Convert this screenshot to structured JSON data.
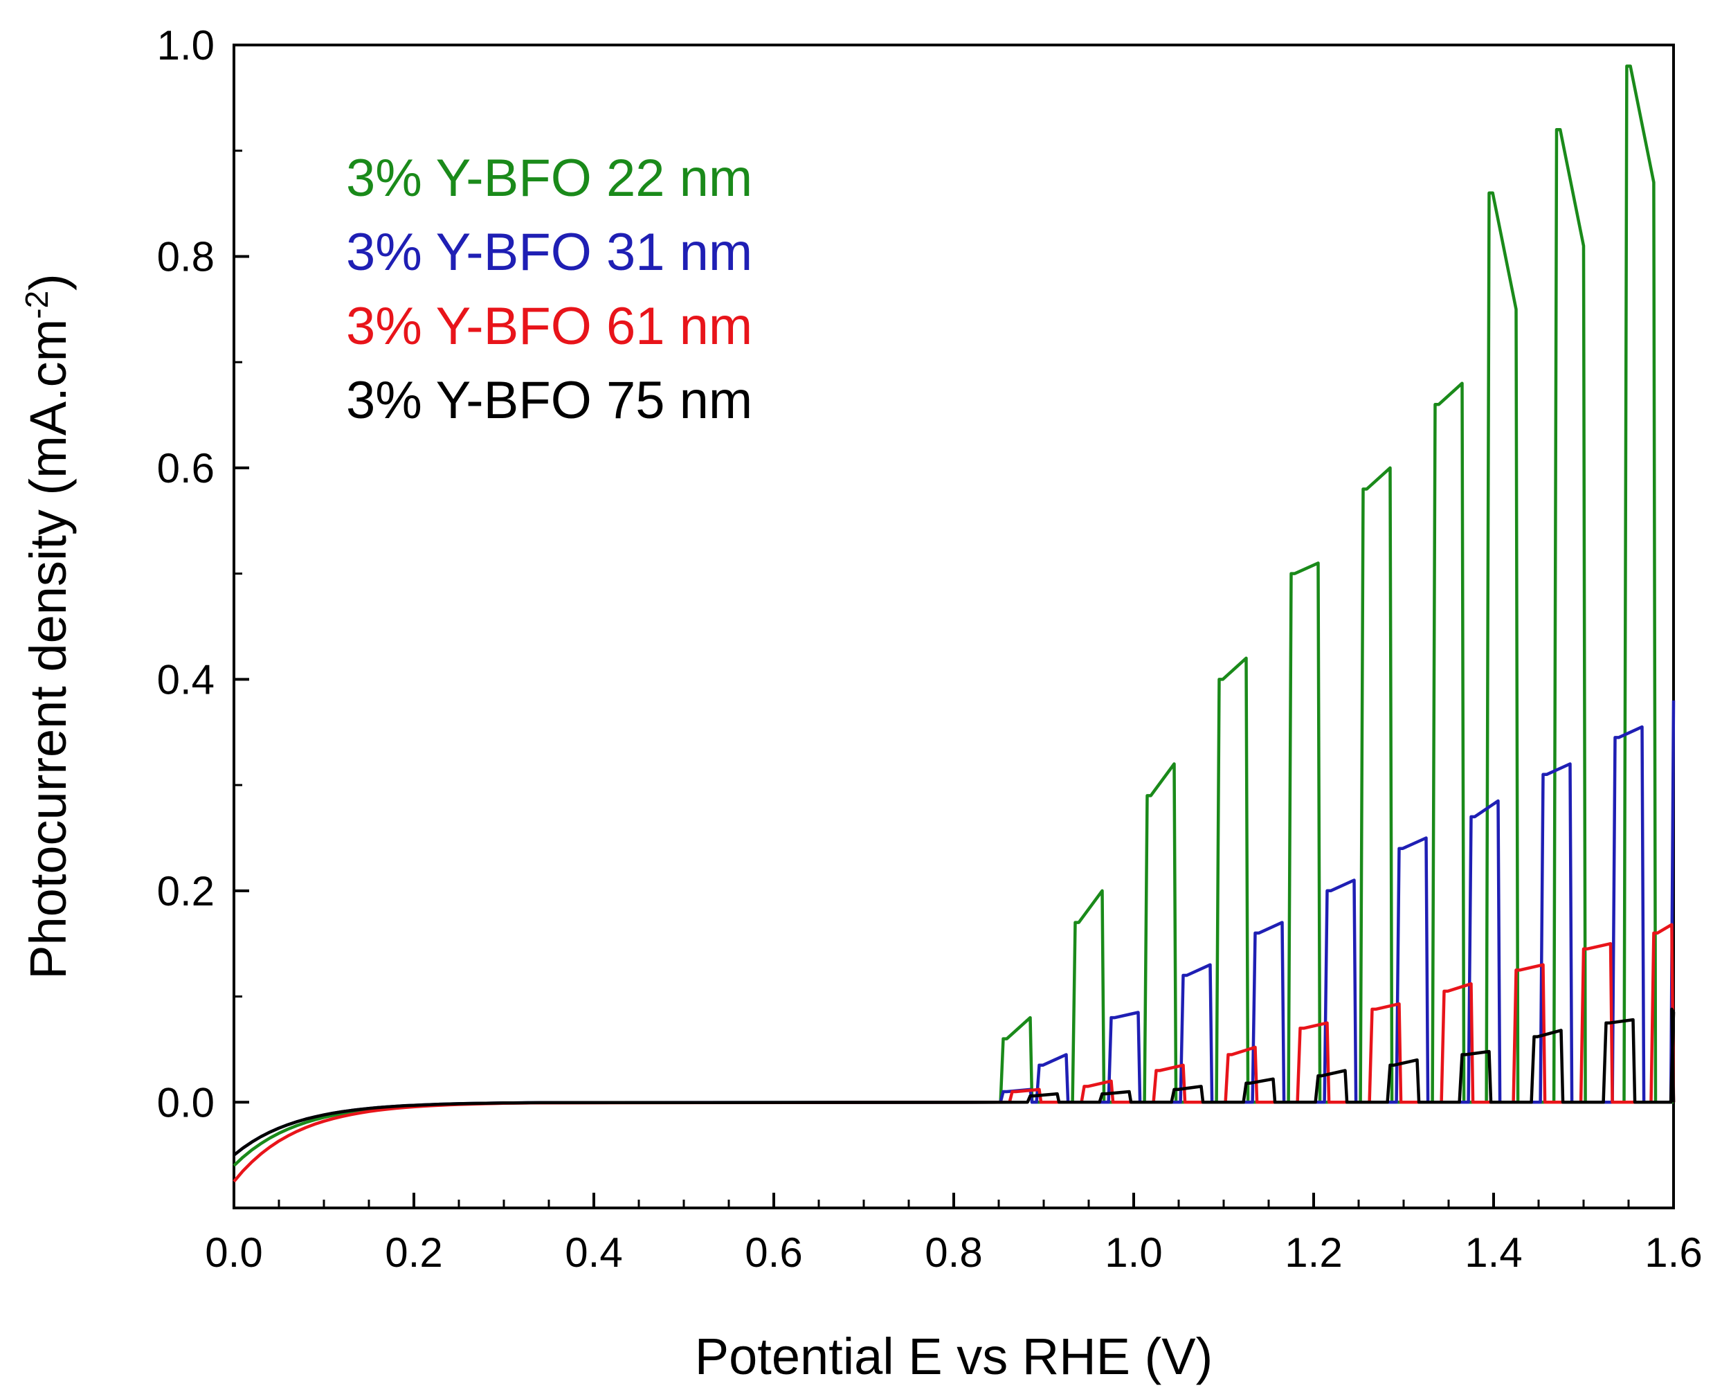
{
  "chart_data": {
    "type": "line",
    "title": "",
    "xlabel": "Potential E vs RHE (V)",
    "ylabel": "Photocurrent density (mA.cm",
    "ylabel_sup": "-2",
    "ylabel_end": ")",
    "xlim": [
      0.0,
      1.6
    ],
    "ylim": [
      -0.1,
      1.0
    ],
    "xticks": [
      "0.0",
      "0.2",
      "0.4",
      "0.6",
      "0.8",
      "1.0",
      "1.2",
      "1.4",
      "1.6"
    ],
    "yticks": [
      "0.0",
      "0.2",
      "0.4",
      "0.6",
      "0.8",
      "1.0"
    ],
    "xtick_values": [
      0.0,
      0.2,
      0.4,
      0.6,
      0.8,
      1.0,
      1.2,
      1.4,
      1.6
    ],
    "ytick_values": [
      0.0,
      0.2,
      0.4,
      0.6,
      0.8,
      1.0
    ],
    "legend_position": "top-left",
    "grid": false,
    "chopped_light": {
      "period": 0.08,
      "light_on_fraction": 0.4,
      "first_on_start": 0.855
    },
    "series": [
      {
        "name": "3% Y-BFO 22 nm",
        "color": "#1a8a1a",
        "dark_start": -0.06,
        "pulses": [
          {
            "start": 0.855,
            "on": 0.06,
            "peak": 0.08
          },
          {
            "start": 0.935,
            "on": 0.17,
            "peak": 0.2
          },
          {
            "start": 1.015,
            "on": 0.29,
            "peak": 0.32
          },
          {
            "start": 1.095,
            "on": 0.4,
            "peak": 0.42
          },
          {
            "start": 1.175,
            "on": 0.5,
            "peak": 0.51
          },
          {
            "start": 1.255,
            "on": 0.58,
            "peak": 0.6
          },
          {
            "start": 1.335,
            "on": 0.66,
            "peak": 0.68
          },
          {
            "start": 1.395,
            "on": 0.86,
            "peak": 0.75
          },
          {
            "start": 1.47,
            "on": 0.92,
            "peak": 0.81
          },
          {
            "start": 1.548,
            "on": 0.98,
            "peak": 0.87
          }
        ]
      },
      {
        "name": "3% Y-BFO 31 nm",
        "color": "#1f1fb4",
        "dark_start": -0.05,
        "pulses": [
          {
            "start": 0.855,
            "on": 0.01,
            "peak": 0.012
          },
          {
            "start": 0.895,
            "on": 0.035,
            "peak": 0.045
          },
          {
            "start": 0.975,
            "on": 0.08,
            "peak": 0.085
          },
          {
            "start": 1.055,
            "on": 0.12,
            "peak": 0.13
          },
          {
            "start": 1.135,
            "on": 0.16,
            "peak": 0.17
          },
          {
            "start": 1.215,
            "on": 0.2,
            "peak": 0.21
          },
          {
            "start": 1.295,
            "on": 0.24,
            "peak": 0.25
          },
          {
            "start": 1.375,
            "on": 0.27,
            "peak": 0.285
          },
          {
            "start": 1.455,
            "on": 0.31,
            "peak": 0.32
          },
          {
            "start": 1.535,
            "on": 0.345,
            "peak": 0.355
          }
        ],
        "end_value": 0.38
      },
      {
        "name": "3% Y-BFO 61 nm",
        "color": "#e8141a",
        "dark_start": -0.075,
        "pulses": [
          {
            "start": 0.865,
            "on": 0.01,
            "peak": 0.012
          },
          {
            "start": 0.945,
            "on": 0.015,
            "peak": 0.02
          },
          {
            "start": 1.025,
            "on": 0.03,
            "peak": 0.035
          },
          {
            "start": 1.105,
            "on": 0.045,
            "peak": 0.052
          },
          {
            "start": 1.185,
            "on": 0.07,
            "peak": 0.075
          },
          {
            "start": 1.265,
            "on": 0.088,
            "peak": 0.093
          },
          {
            "start": 1.345,
            "on": 0.105,
            "peak": 0.112
          },
          {
            "start": 1.425,
            "on": 0.125,
            "peak": 0.13
          },
          {
            "start": 1.5,
            "on": 0.145,
            "peak": 0.15
          },
          {
            "start": 1.578,
            "on": 0.16,
            "peak": 0.168
          }
        ]
      },
      {
        "name": "3% Y-BFO 75 nm",
        "color": "#000000",
        "dark_start": -0.05,
        "pulses": [
          {
            "start": 0.885,
            "on": 0.006,
            "peak": 0.008
          },
          {
            "start": 0.965,
            "on": 0.008,
            "peak": 0.01
          },
          {
            "start": 1.045,
            "on": 0.012,
            "peak": 0.015
          },
          {
            "start": 1.125,
            "on": 0.018,
            "peak": 0.022
          },
          {
            "start": 1.205,
            "on": 0.025,
            "peak": 0.03
          },
          {
            "start": 1.285,
            "on": 0.035,
            "peak": 0.04
          },
          {
            "start": 1.365,
            "on": 0.045,
            "peak": 0.048
          },
          {
            "start": 1.445,
            "on": 0.062,
            "peak": 0.068
          },
          {
            "start": 1.525,
            "on": 0.075,
            "peak": 0.078
          },
          {
            "start": 1.6,
            "on": 0.085,
            "peak": 0.088
          }
        ]
      }
    ]
  }
}
